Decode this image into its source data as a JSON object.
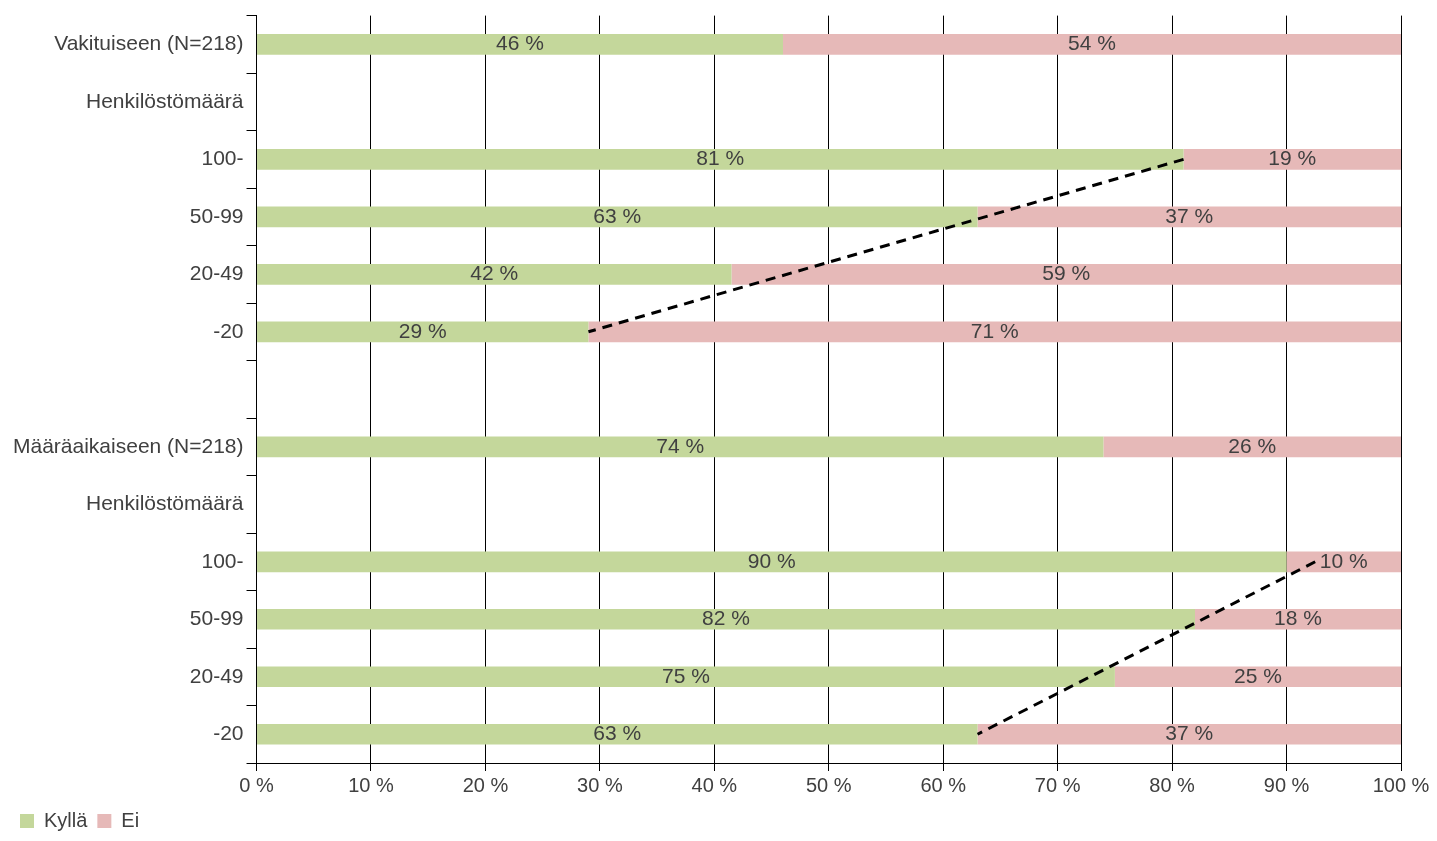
{
  "chart_data": {
    "type": "bar",
    "orientation": "horizontal",
    "stacked": true,
    "categories": [
      "Vakituiseen (N=218)",
      "Henkilöstömäärä",
      "100-",
      "50-99",
      "20-49",
      "-20",
      null,
      "Määräaikaiseen (N=218)",
      "Henkilöstömäärä",
      "100-",
      "50-99",
      "20-49",
      "-20"
    ],
    "series": [
      {
        "name": "Kyllä",
        "color": "#c4d79b",
        "values": [
          46,
          null,
          81,
          63,
          41.5,
          29,
          null,
          74,
          null,
          90,
          82,
          75,
          63
        ],
        "value_labels": [
          "46 %",
          null,
          "81 %",
          "63 %",
          "42 %",
          "29 %",
          null,
          "74 %",
          null,
          "90 %",
          "82 %",
          "75 %",
          "63 %"
        ]
      },
      {
        "name": "Ei",
        "color": "#e6b9b8",
        "values": [
          54,
          null,
          19,
          37,
          58.5,
          71,
          null,
          26,
          null,
          10,
          18,
          25,
          37
        ],
        "value_labels": [
          "54 %",
          null,
          "19 %",
          "37 %",
          "59 %",
          "71 %",
          null,
          "26 %",
          null,
          "10 %",
          "18 %",
          "25 %",
          "37 %"
        ]
      },
      {
        "type": "line",
        "color": "#000000",
        "line_style": "dashed",
        "marker": "none",
        "values": [
          null,
          null,
          81,
          null,
          null,
          29,
          null,
          null,
          null,
          null,
          null,
          null,
          null
        ]
      },
      {
        "type": "line",
        "color": "#000000",
        "line_style": "dashed",
        "marker": "none",
        "values": [
          null,
          null,
          null,
          null,
          null,
          null,
          null,
          null,
          null,
          92.5,
          null,
          null,
          63
        ]
      }
    ],
    "xlim": [
      0,
      100
    ],
    "xticks": [
      {
        "value": 0,
        "label": "0 %"
      },
      {
        "value": 10,
        "label": "10 %"
      },
      {
        "value": 20,
        "label": "20 %"
      },
      {
        "value": 30,
        "label": "30 %"
      },
      {
        "value": 40,
        "label": "40 %"
      },
      {
        "value": 50,
        "label": "50 %"
      },
      {
        "value": 60,
        "label": "60 %"
      },
      {
        "value": 70,
        "label": "70 %"
      },
      {
        "value": 80,
        "label": "80 %"
      },
      {
        "value": 90,
        "label": "90 %"
      },
      {
        "value": 100,
        "label": "100 %"
      }
    ],
    "grid": true,
    "legend": "bottom left"
  }
}
